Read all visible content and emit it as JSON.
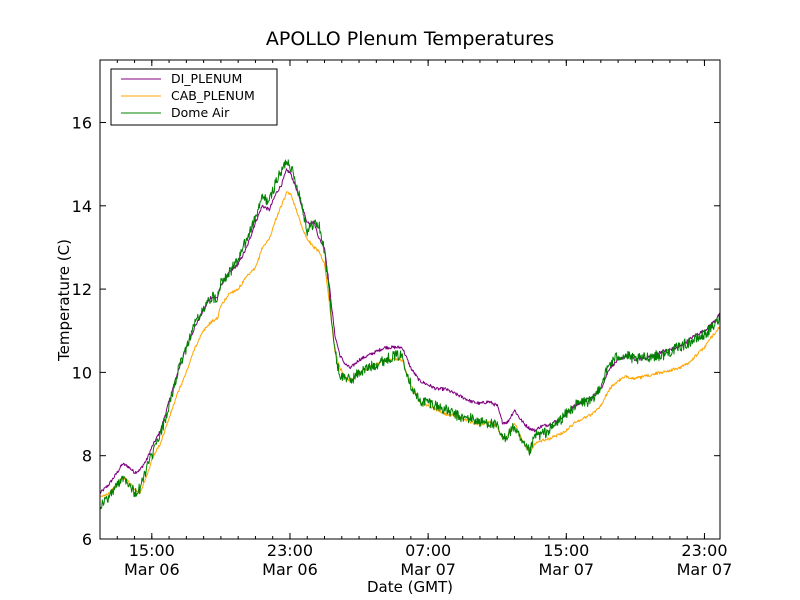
{
  "chart_data": {
    "type": "line",
    "title": "APOLLO Plenum Temperatures",
    "xlabel": "Date (GMT)",
    "ylabel": "Temperature (C)",
    "x_unit": "hours since 2014-03-06 00:00 GMT",
    "xlim": [
      12.0,
      47.9
    ],
    "ylim": [
      6,
      17.5
    ],
    "yticks": [
      6,
      8,
      10,
      12,
      14,
      16
    ],
    "xticks": [
      {
        "x": 15,
        "time": "15:00",
        "date": "Mar 06"
      },
      {
        "x": 23,
        "time": "23:00",
        "date": "Mar 06"
      },
      {
        "x": 31,
        "time": "07:00",
        "date": "Mar 07"
      },
      {
        "x": 39,
        "time": "15:00",
        "date": "Mar 07"
      },
      {
        "x": 47,
        "time": "23:00",
        "date": "Mar 07"
      }
    ],
    "grid": false,
    "legend_position": "top-left",
    "series": [
      {
        "name": "DI_PLENUM",
        "color": "#800080",
        "noise": 0.04,
        "points": [
          [
            12.0,
            7.1
          ],
          [
            12.5,
            7.3
          ],
          [
            13.0,
            7.6
          ],
          [
            13.3,
            7.8
          ],
          [
            13.6,
            7.75
          ],
          [
            14.0,
            7.6
          ],
          [
            14.3,
            7.65
          ],
          [
            14.7,
            7.9
          ],
          [
            15.0,
            8.2
          ],
          [
            15.5,
            8.6
          ],
          [
            16.0,
            9.3
          ],
          [
            16.5,
            10.0
          ],
          [
            17.0,
            10.6
          ],
          [
            17.5,
            11.1
          ],
          [
            18.0,
            11.5
          ],
          [
            18.4,
            11.8
          ],
          [
            18.8,
            11.8
          ],
          [
            19.0,
            12.1
          ],
          [
            19.5,
            12.4
          ],
          [
            20.0,
            12.6
          ],
          [
            20.5,
            13.0
          ],
          [
            21.0,
            13.6
          ],
          [
            21.4,
            14.0
          ],
          [
            21.8,
            13.9
          ],
          [
            22.2,
            14.3
          ],
          [
            22.5,
            14.5
          ],
          [
            22.8,
            14.85
          ],
          [
            23.0,
            14.8
          ],
          [
            23.3,
            14.5
          ],
          [
            23.6,
            14.1
          ],
          [
            24.0,
            13.6
          ],
          [
            24.4,
            13.6
          ],
          [
            24.7,
            13.2
          ],
          [
            25.0,
            13.0
          ],
          [
            25.3,
            12.0
          ],
          [
            25.6,
            10.9
          ],
          [
            25.9,
            10.4
          ],
          [
            26.2,
            10.2
          ],
          [
            26.5,
            10.1
          ],
          [
            27.0,
            10.3
          ],
          [
            27.5,
            10.4
          ],
          [
            28.0,
            10.5
          ],
          [
            28.5,
            10.6
          ],
          [
            29.0,
            10.6
          ],
          [
            29.5,
            10.6
          ],
          [
            30.0,
            10.1
          ],
          [
            30.5,
            9.8
          ],
          [
            31.0,
            9.7
          ],
          [
            31.5,
            9.6
          ],
          [
            32.0,
            9.6
          ],
          [
            32.5,
            9.5
          ],
          [
            33.0,
            9.4
          ],
          [
            33.5,
            9.3
          ],
          [
            34.0,
            9.25
          ],
          [
            34.5,
            9.3
          ],
          [
            35.0,
            9.2
          ],
          [
            35.3,
            8.8
          ],
          [
            35.6,
            8.8
          ],
          [
            36.0,
            9.1
          ],
          [
            36.3,
            8.9
          ],
          [
            36.6,
            8.75
          ],
          [
            36.9,
            8.65
          ],
          [
            37.2,
            8.6
          ],
          [
            37.5,
            8.7
          ],
          [
            38.0,
            8.75
          ],
          [
            38.5,
            8.85
          ],
          [
            39.0,
            9.0
          ],
          [
            39.5,
            9.2
          ],
          [
            40.0,
            9.3
          ],
          [
            40.5,
            9.4
          ],
          [
            41.0,
            9.6
          ],
          [
            41.5,
            10.1
          ],
          [
            42.0,
            10.3
          ],
          [
            42.5,
            10.4
          ],
          [
            43.0,
            10.3
          ],
          [
            43.5,
            10.35
          ],
          [
            44.0,
            10.4
          ],
          [
            44.5,
            10.5
          ],
          [
            45.0,
            10.55
          ],
          [
            45.5,
            10.6
          ],
          [
            46.0,
            10.75
          ],
          [
            46.5,
            10.9
          ],
          [
            47.0,
            11.0
          ],
          [
            47.5,
            11.2
          ],
          [
            47.9,
            11.4
          ]
        ]
      },
      {
        "name": "CAB_PLENUM",
        "color": "#ffa500",
        "noise": 0.035,
        "points": [
          [
            12.0,
            7.0
          ],
          [
            12.5,
            7.1
          ],
          [
            13.0,
            7.3
          ],
          [
            13.3,
            7.5
          ],
          [
            13.6,
            7.4
          ],
          [
            14.0,
            7.2
          ],
          [
            14.3,
            7.1
          ],
          [
            14.7,
            7.5
          ],
          [
            15.0,
            7.9
          ],
          [
            15.5,
            8.3
          ],
          [
            16.0,
            8.9
          ],
          [
            16.5,
            9.5
          ],
          [
            17.0,
            10.0
          ],
          [
            17.5,
            10.6
          ],
          [
            18.0,
            11.0
          ],
          [
            18.4,
            11.2
          ],
          [
            18.8,
            11.3
          ],
          [
            19.0,
            11.6
          ],
          [
            19.5,
            11.9
          ],
          [
            20.0,
            12.0
          ],
          [
            20.5,
            12.3
          ],
          [
            21.0,
            12.5
          ],
          [
            21.4,
            13.0
          ],
          [
            21.8,
            13.2
          ],
          [
            22.2,
            13.7
          ],
          [
            22.5,
            14.0
          ],
          [
            22.8,
            14.3
          ],
          [
            23.0,
            14.3
          ],
          [
            23.3,
            14.0
          ],
          [
            23.6,
            13.6
          ],
          [
            24.0,
            13.2
          ],
          [
            24.4,
            13.0
          ],
          [
            24.7,
            12.9
          ],
          [
            25.0,
            12.6
          ],
          [
            25.3,
            11.6
          ],
          [
            25.6,
            10.5
          ],
          [
            25.9,
            10.1
          ],
          [
            26.2,
            9.9
          ],
          [
            26.5,
            9.8
          ],
          [
            27.0,
            10.0
          ],
          [
            27.5,
            10.1
          ],
          [
            28.0,
            10.2
          ],
          [
            28.5,
            10.3
          ],
          [
            29.0,
            10.3
          ],
          [
            29.5,
            10.3
          ],
          [
            30.0,
            9.7
          ],
          [
            30.5,
            9.3
          ],
          [
            31.0,
            9.2
          ],
          [
            31.5,
            9.1
          ],
          [
            32.0,
            9.0
          ],
          [
            32.5,
            8.95
          ],
          [
            33.0,
            8.9
          ],
          [
            33.5,
            8.8
          ],
          [
            34.0,
            8.75
          ],
          [
            34.5,
            8.8
          ],
          [
            35.0,
            8.7
          ],
          [
            35.3,
            8.4
          ],
          [
            35.6,
            8.5
          ],
          [
            36.0,
            8.8
          ],
          [
            36.3,
            8.5
          ],
          [
            36.6,
            8.25
          ],
          [
            36.9,
            8.1
          ],
          [
            37.2,
            8.3
          ],
          [
            37.5,
            8.35
          ],
          [
            38.0,
            8.4
          ],
          [
            38.5,
            8.5
          ],
          [
            39.0,
            8.6
          ],
          [
            39.5,
            8.8
          ],
          [
            40.0,
            8.9
          ],
          [
            40.5,
            9.0
          ],
          [
            41.0,
            9.2
          ],
          [
            41.5,
            9.6
          ],
          [
            42.0,
            9.8
          ],
          [
            42.5,
            9.9
          ],
          [
            43.0,
            9.85
          ],
          [
            43.5,
            9.9
          ],
          [
            44.0,
            9.95
          ],
          [
            44.5,
            10.0
          ],
          [
            45.0,
            10.05
          ],
          [
            45.5,
            10.1
          ],
          [
            46.0,
            10.2
          ],
          [
            46.5,
            10.4
          ],
          [
            47.0,
            10.6
          ],
          [
            47.5,
            10.9
          ],
          [
            47.9,
            11.1
          ]
        ]
      },
      {
        "name": "Dome Air",
        "color": "#008000",
        "noise": 0.13,
        "points": [
          [
            12.0,
            6.8
          ],
          [
            12.5,
            7.0
          ],
          [
            13.0,
            7.3
          ],
          [
            13.3,
            7.5
          ],
          [
            13.6,
            7.4
          ],
          [
            14.0,
            7.1
          ],
          [
            14.3,
            7.2
          ],
          [
            14.7,
            7.7
          ],
          [
            15.0,
            8.0
          ],
          [
            15.5,
            8.5
          ],
          [
            16.0,
            9.2
          ],
          [
            16.5,
            10.0
          ],
          [
            17.0,
            10.6
          ],
          [
            17.5,
            11.2
          ],
          [
            18.0,
            11.5
          ],
          [
            18.4,
            11.8
          ],
          [
            18.8,
            11.8
          ],
          [
            19.0,
            12.2
          ],
          [
            19.5,
            12.4
          ],
          [
            20.0,
            12.7
          ],
          [
            20.5,
            13.2
          ],
          [
            21.0,
            13.7
          ],
          [
            21.4,
            14.2
          ],
          [
            21.8,
            14.1
          ],
          [
            22.2,
            14.6
          ],
          [
            22.5,
            14.8
          ],
          [
            22.8,
            15.1
          ],
          [
            23.0,
            15.0
          ],
          [
            23.3,
            14.6
          ],
          [
            23.6,
            14.2
          ],
          [
            24.0,
            13.4
          ],
          [
            24.4,
            13.6
          ],
          [
            24.7,
            13.5
          ],
          [
            25.0,
            12.9
          ],
          [
            25.3,
            11.8
          ],
          [
            25.6,
            10.5
          ],
          [
            25.9,
            9.9
          ],
          [
            26.2,
            9.9
          ],
          [
            26.5,
            9.8
          ],
          [
            27.0,
            10.0
          ],
          [
            27.5,
            10.1
          ],
          [
            28.0,
            10.2
          ],
          [
            28.5,
            10.3
          ],
          [
            29.0,
            10.4
          ],
          [
            29.5,
            10.4
          ],
          [
            30.0,
            9.7
          ],
          [
            30.5,
            9.3
          ],
          [
            31.0,
            9.3
          ],
          [
            31.5,
            9.2
          ],
          [
            32.0,
            9.1
          ],
          [
            32.5,
            9.0
          ],
          [
            33.0,
            8.9
          ],
          [
            33.5,
            8.9
          ],
          [
            34.0,
            8.8
          ],
          [
            34.5,
            8.8
          ],
          [
            35.0,
            8.7
          ],
          [
            35.3,
            8.4
          ],
          [
            35.6,
            8.5
          ],
          [
            36.0,
            8.7
          ],
          [
            36.3,
            8.4
          ],
          [
            36.6,
            8.2
          ],
          [
            36.9,
            8.1
          ],
          [
            37.2,
            8.5
          ],
          [
            37.5,
            8.5
          ],
          [
            38.0,
            8.6
          ],
          [
            38.5,
            8.8
          ],
          [
            39.0,
            9.0
          ],
          [
            39.5,
            9.2
          ],
          [
            40.0,
            9.3
          ],
          [
            40.5,
            9.3
          ],
          [
            41.0,
            9.7
          ],
          [
            41.5,
            10.2
          ],
          [
            42.0,
            10.4
          ],
          [
            42.5,
            10.4
          ],
          [
            43.0,
            10.3
          ],
          [
            43.5,
            10.35
          ],
          [
            44.0,
            10.4
          ],
          [
            44.5,
            10.4
          ],
          [
            45.0,
            10.5
          ],
          [
            45.5,
            10.6
          ],
          [
            46.0,
            10.7
          ],
          [
            46.5,
            10.8
          ],
          [
            47.0,
            10.9
          ],
          [
            47.5,
            11.1
          ],
          [
            47.9,
            11.3
          ]
        ]
      }
    ]
  }
}
